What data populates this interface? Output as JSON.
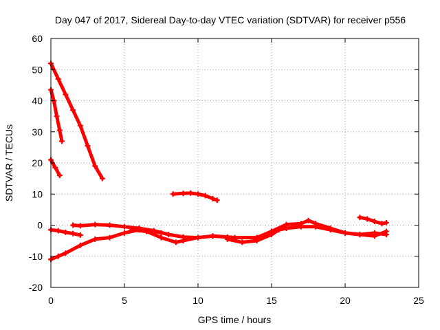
{
  "chart_data": {
    "type": "scatter",
    "title": "Day 047 of 2017, Sidereal Day-to-day VTEC variation (SDTVAR) for receiver p556",
    "xlabel": "GPS time / hours",
    "ylabel": "SDTVAR / TECUs",
    "xlim": [
      0,
      25
    ],
    "ylim": [
      -20,
      60
    ],
    "xticks": [
      0,
      5,
      10,
      15,
      20,
      25
    ],
    "yticks": [
      -20,
      -10,
      0,
      10,
      20,
      30,
      40,
      50,
      60
    ],
    "grid": true,
    "marker_color": "#ff0000",
    "series": [
      {
        "name": "arc-1",
        "x": [
          0.0,
          0.5,
          1.0,
          1.5,
          2.0,
          2.5,
          3.0,
          3.5
        ],
        "y": [
          52,
          47,
          42,
          37,
          32,
          25.5,
          19,
          15
        ]
      },
      {
        "name": "arc-2",
        "x": [
          0.0,
          0.2,
          0.4,
          0.6,
          0.75
        ],
        "y": [
          43.5,
          40,
          35,
          30.5,
          27
        ]
      },
      {
        "name": "arc-3",
        "x": [
          0.0,
          0.3,
          0.6
        ],
        "y": [
          21,
          18.5,
          16
        ]
      },
      {
        "name": "arc-4",
        "x": [
          0.0,
          0.5,
          1.0,
          1.5,
          2.0
        ],
        "y": [
          -1.5,
          -1.8,
          -2.3,
          -2.7,
          -3.2
        ]
      },
      {
        "name": "arc-5",
        "x": [
          0.0,
          0.5,
          1.0,
          2.0,
          3.0,
          4.0,
          5.0,
          6.0,
          7.0,
          7.5
        ],
        "y": [
          -11,
          -10,
          -9,
          -6.5,
          -4.5,
          -4,
          -2.5,
          -1.5,
          -2,
          -2.5
        ]
      },
      {
        "name": "arc-6",
        "x": [
          1.5,
          2.0,
          3.0,
          4.0,
          5.0,
          6.0,
          7.0,
          8.0,
          9.0,
          10.0,
          11.0,
          12.0,
          12.5
        ],
        "y": [
          0,
          -0.2,
          0.2,
          0,
          -0.5,
          -1,
          -1.8,
          -3,
          -3.8,
          -4,
          -3.5,
          -3.8,
          -4
        ]
      },
      {
        "name": "arc-7",
        "x": [
          5.5,
          6.5,
          7.5,
          8.5,
          9.0,
          10.0,
          11.0,
          12.5,
          14.0,
          15.0,
          16.0,
          17.0,
          17.5,
          18.0,
          19.0,
          20.0,
          21.0,
          22.0,
          22.8
        ],
        "y": [
          -1.5,
          -2,
          -4,
          -5.5,
          -5,
          -4,
          -3.5,
          -4,
          -4,
          -2,
          0.2,
          0.5,
          1.5,
          0.5,
          -1,
          -2.5,
          -3,
          -3.5,
          -2
        ]
      },
      {
        "name": "arc-8",
        "x": [
          12.0,
          13.0,
          14.0,
          15.0,
          15.5,
          16.0,
          17.0,
          18.0,
          19.0,
          20.0,
          21.0,
          22.0,
          22.8
        ],
        "y": [
          -4.5,
          -5.5,
          -5,
          -3,
          -1.5,
          -1,
          -0.5,
          -0.5,
          -1.5,
          -2.5,
          -3,
          -2.5,
          -3
        ]
      },
      {
        "name": "arc-9",
        "x": [
          8.3,
          9.0,
          9.5,
          10.0,
          10.5,
          11.0,
          11.3
        ],
        "y": [
          10,
          10.2,
          10.3,
          10,
          9.5,
          8.5,
          8
        ]
      },
      {
        "name": "arc-10",
        "x": [
          21.0,
          21.5,
          22.0,
          22.5,
          22.8
        ],
        "y": [
          2.5,
          2,
          1.2,
          0.5,
          0.8
        ]
      }
    ]
  }
}
